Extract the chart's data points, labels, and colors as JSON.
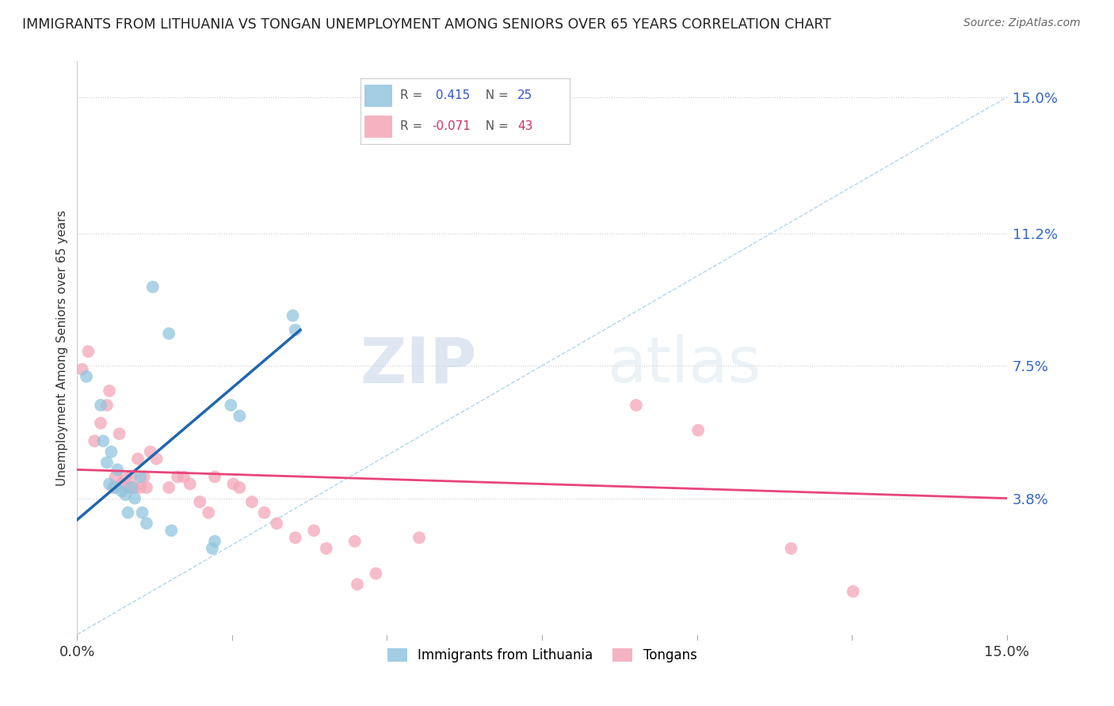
{
  "title": "IMMIGRANTS FROM LITHUANIA VS TONGAN UNEMPLOYMENT AMONG SENIORS OVER 65 YEARS CORRELATION CHART",
  "source": "Source: ZipAtlas.com",
  "ylabel": "Unemployment Among Seniors over 65 years",
  "xlim": [
    0.0,
    15.0
  ],
  "ylim": [
    0.0,
    16.0
  ],
  "ytick_labels": [
    "3.8%",
    "7.5%",
    "11.2%",
    "15.0%"
  ],
  "ytick_values": [
    3.8,
    7.5,
    11.2,
    15.0
  ],
  "r_lithuania": 0.415,
  "n_lithuania": 25,
  "r_tongan": -0.071,
  "n_tongan": 43,
  "legend_label_1": "Immigrants from Lithuania",
  "legend_label_2": "Tongans",
  "watermark_zip": "ZIP",
  "watermark_atlas": "atlas",
  "color_blue": "#92c5de",
  "color_pink": "#f4a6b8",
  "color_blue_line": "#2166ac",
  "color_pink_line": "#e8457a",
  "color_dashed": "#92c5de",
  "lith_blue_r": "#3399ff",
  "lith_blue_n": "#3333cc",
  "tong_pink_r": "#ff3366",
  "tong_pink_n": "#cc0033",
  "lithuania_x": [
    0.15,
    0.38,
    0.42,
    0.48,
    0.52,
    0.55,
    0.62,
    0.65,
    0.72,
    0.78,
    0.82,
    0.88,
    0.93,
    1.02,
    1.05,
    1.12,
    1.22,
    1.48,
    1.52,
    2.18,
    2.22,
    2.48,
    2.62,
    3.48,
    3.52
  ],
  "lithuania_y": [
    7.2,
    6.4,
    5.4,
    4.8,
    4.2,
    5.1,
    4.1,
    4.6,
    4.0,
    3.9,
    3.4,
    4.1,
    3.8,
    4.4,
    3.4,
    3.1,
    9.7,
    8.4,
    2.9,
    2.4,
    2.6,
    6.4,
    6.1,
    8.9,
    8.5
  ],
  "tongan_x": [
    0.08,
    0.18,
    0.28,
    0.38,
    0.48,
    0.52,
    0.58,
    0.62,
    0.68,
    0.72,
    0.78,
    0.82,
    0.88,
    0.92,
    0.98,
    1.02,
    1.08,
    1.12,
    1.18,
    1.28,
    1.48,
    1.62,
    1.72,
    1.82,
    1.98,
    2.12,
    2.22,
    2.52,
    2.62,
    2.82,
    3.02,
    3.22,
    3.52,
    3.82,
    4.02,
    4.48,
    4.52,
    4.82,
    5.52,
    9.02,
    10.02,
    11.52,
    12.52
  ],
  "tongan_y": [
    7.4,
    7.9,
    5.4,
    5.9,
    6.4,
    6.8,
    4.1,
    4.4,
    5.6,
    4.2,
    4.4,
    4.1,
    4.4,
    4.1,
    4.9,
    4.1,
    4.4,
    4.1,
    5.1,
    4.9,
    4.1,
    4.4,
    4.4,
    4.2,
    3.7,
    3.4,
    4.4,
    4.2,
    4.1,
    3.7,
    3.4,
    3.1,
    2.7,
    2.9,
    2.4,
    2.6,
    1.4,
    1.7,
    2.7,
    6.4,
    5.7,
    2.4,
    1.2
  ],
  "lith_line_x0": 0.0,
  "lith_line_x1": 3.6,
  "lith_line_y0": 3.2,
  "lith_line_y1": 8.5,
  "tong_line_x0": 0.0,
  "tong_line_x1": 15.0,
  "tong_line_y0": 4.6,
  "tong_line_y1": 3.8
}
